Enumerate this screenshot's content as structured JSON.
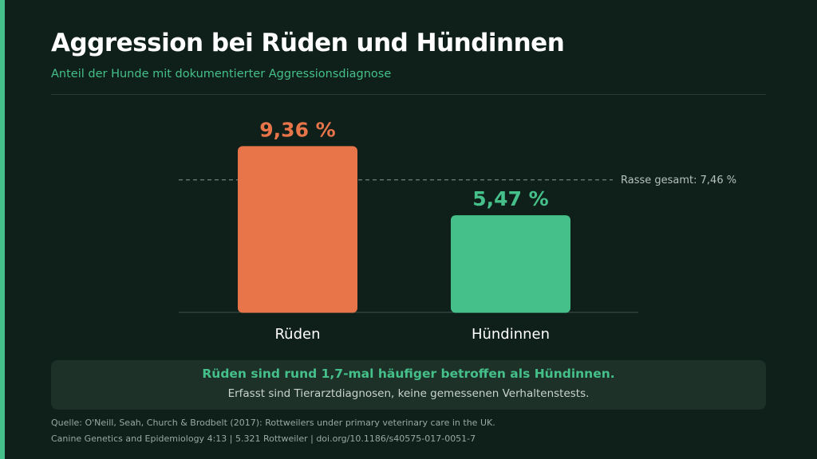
{
  "header": {
    "title": "Aggression bei Rüden und Hündinnen",
    "subtitle": "Anteil der Hunde mit dokumentierter Aggressionsdiagnose"
  },
  "chart_data": {
    "type": "bar",
    "categories": [
      "Rüden",
      "Hündinnen"
    ],
    "values": [
      9.36,
      5.47
    ],
    "value_labels": [
      "9,36 %",
      "5,47 %"
    ],
    "colors": [
      "#e8744a",
      "#45c08a"
    ],
    "ylim": [
      0,
      10.5
    ],
    "grid": false,
    "reference_line": {
      "value": 7.46,
      "label": "Rasse gesamt: 7,46 %"
    }
  },
  "note": {
    "headline": "Rüden sind rund 1,7-mal häufiger betroffen als Hündinnen.",
    "subtext": "Erfasst sind Tierarztdiagnosen, keine gemessenen Verhaltenstests."
  },
  "source": {
    "line1": "Quelle: O'Neill, Seah, Church & Brodbelt (2017): Rottweilers under primary veterinary care in the UK.",
    "line2": "Canine Genetics and Epidemiology 4:13 | 5.321 Rottweiler | doi.org/10.1186/s40575-017-0051-7"
  },
  "theme": {
    "accent": "#45c08a",
    "background": "#0f1f19"
  }
}
